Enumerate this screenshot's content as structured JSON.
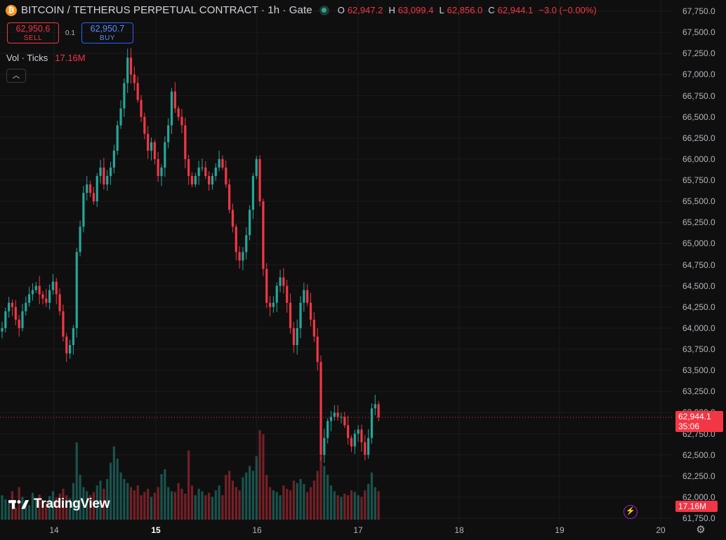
{
  "header": {
    "symbol_icon": "bitcoin-icon",
    "title": "BITCOIN / TETHERUS PERPETUAL CONTRACT · 1h · Gate",
    "ohlc": [
      {
        "key": "O",
        "value": "62,947.2"
      },
      {
        "key": "H",
        "value": "63,099.4"
      },
      {
        "key": "L",
        "value": "62,856.0"
      },
      {
        "key": "C",
        "value": "62,944.1"
      }
    ],
    "change": "−3.0 (−0.00%)"
  },
  "trade": {
    "sell_price": "62,950.6",
    "sell_label": "SELL",
    "spread": "0.1",
    "buy_price": "62,950.7",
    "buy_label": "BUY"
  },
  "volume": {
    "label": "Vol · Ticks",
    "value": "17.16M"
  },
  "price_tag": {
    "price": "62,944.1",
    "countdown": "35:06"
  },
  "volume_tag": "17.16M",
  "logo_text": "TradingView",
  "colors": {
    "up": "#26a69a",
    "down": "#f23645",
    "background": "#0f0f0f"
  },
  "chart_data": {
    "type": "candlestick",
    "timeframe": "1h",
    "y_ticks": [
      "67,750.0",
      "67,500.0",
      "67,250.0",
      "67,000.0",
      "66,750.0",
      "66,500.0",
      "66,250.0",
      "66,000.0",
      "65,750.0",
      "65,500.0",
      "65,250.0",
      "65,000.0",
      "64,750.0",
      "64,500.0",
      "64,250.0",
      "64,000.0",
      "63,750.0",
      "63,500.0",
      "63,250.0",
      "63,000.0",
      "62,750.0",
      "62,500.0",
      "62,250.0",
      "62,000.0",
      "61,750.0"
    ],
    "x_ticks": [
      "14",
      "15",
      "16",
      "17",
      "18",
      "19",
      "20"
    ],
    "x_ticks_bold": [
      "15"
    ],
    "ylim": [
      61750,
      67750
    ],
    "close_series": [
      64000,
      64200,
      64300,
      64250,
      64100,
      64000,
      64200,
      64300,
      64400,
      64450,
      64500,
      64400,
      64350,
      64300,
      64450,
      64550,
      64400,
      64200,
      63900,
      63700,
      63800,
      64000,
      64900,
      65200,
      65600,
      65700,
      65600,
      65500,
      65800,
      65900,
      65700,
      65800,
      65900,
      66100,
      66400,
      66600,
      66900,
      67200,
      67000,
      66900,
      66700,
      66500,
      66300,
      66100,
      66200,
      66000,
      65800,
      65900,
      66200,
      66400,
      66800,
      66600,
      66500,
      66400,
      66000,
      65800,
      65700,
      65800,
      65900,
      65900,
      65800,
      65700,
      65800,
      65900,
      66000,
      65900,
      65700,
      65400,
      65200,
      64900,
      64800,
      64900,
      65100,
      65400,
      65800,
      66000,
      65500,
      64700,
      64300,
      64250,
      64300,
      64500,
      64600,
      64500,
      64300,
      64000,
      63800,
      64000,
      64300,
      64450,
      64300,
      64100,
      63900,
      63600,
      62500,
      62700,
      62900,
      62950,
      63000,
      62950,
      62950,
      62850,
      62700,
      62600,
      62750,
      62800,
      62650,
      62500,
      62700,
      63050,
      63100,
      62944.1
    ],
    "volume_series": [
      0.3,
      0.25,
      0.2,
      0.35,
      0.15,
      0.4,
      0.28,
      0.22,
      0.18,
      0.33,
      0.26,
      0.31,
      0.24,
      0.2,
      0.29,
      0.35,
      0.27,
      0.32,
      0.38,
      0.3,
      0.26,
      0.45,
      0.95,
      0.55,
      0.4,
      0.35,
      0.3,
      0.34,
      0.42,
      0.48,
      0.38,
      0.5,
      0.7,
      0.9,
      0.75,
      0.58,
      0.5,
      0.45,
      0.4,
      0.36,
      0.42,
      0.3,
      0.34,
      0.38,
      0.28,
      0.33,
      0.4,
      0.56,
      0.62,
      0.4,
      0.35,
      0.34,
      0.45,
      0.38,
      0.32,
      0.85,
      0.42,
      0.3,
      0.38,
      0.35,
      0.3,
      0.33,
      0.28,
      0.36,
      0.42,
      0.3,
      0.55,
      0.6,
      0.48,
      0.4,
      0.36,
      0.52,
      0.58,
      0.66,
      0.6,
      0.78,
      1.1,
      1.05,
      0.55,
      0.4,
      0.36,
      0.34,
      0.3,
      0.42,
      0.38,
      0.36,
      0.48,
      0.45,
      0.5,
      0.44,
      0.34,
      0.4,
      0.48,
      0.6,
      0.78,
      0.66,
      0.55,
      0.42,
      0.35,
      0.3,
      0.28,
      0.32,
      0.3,
      0.36,
      0.34,
      0.3,
      0.28,
      0.36,
      0.44,
      0.58,
      0.4,
      0.35
    ]
  }
}
